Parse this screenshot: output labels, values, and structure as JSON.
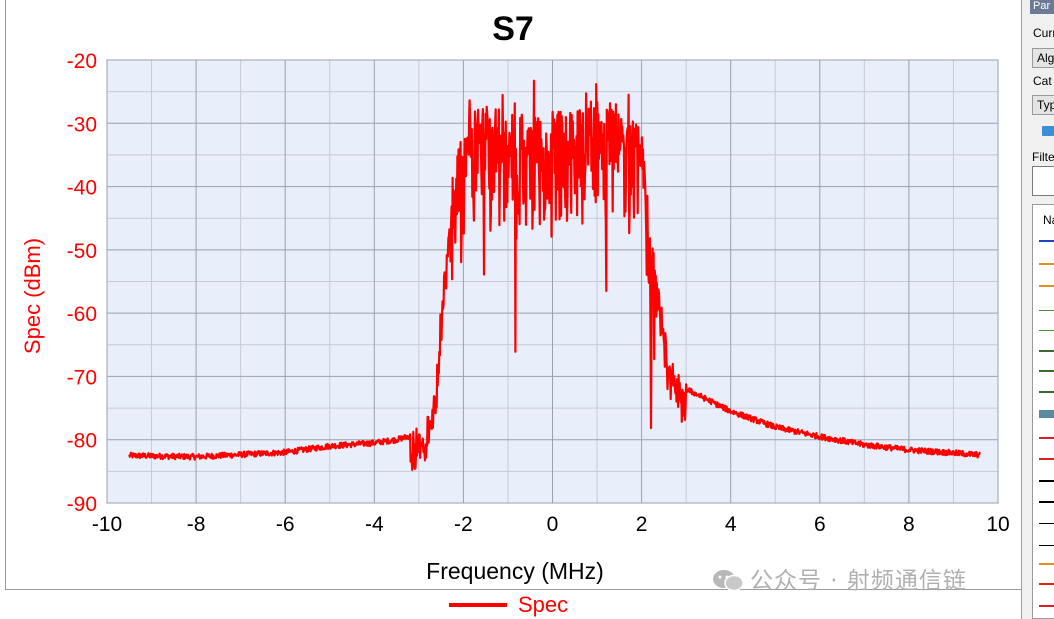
{
  "chart_data": {
    "type": "line",
    "title": "S7",
    "xlabel": "Frequency (MHz)",
    "ylabel": "Spec (dBm)",
    "xlim": [
      -10,
      10
    ],
    "ylim": [
      -90,
      -20
    ],
    "x_ticks": [
      -10,
      -8,
      -6,
      -4,
      -2,
      0,
      2,
      4,
      6,
      8,
      10
    ],
    "y_ticks": [
      -90,
      -80,
      -70,
      -60,
      -50,
      -40,
      -30,
      -20
    ],
    "grid": true,
    "legend_position": "bottom-center",
    "series": [
      {
        "name": "Spec",
        "color": "#ff0000",
        "x": [
          -9.5,
          -8,
          -6,
          -5,
          -4,
          -3.5,
          -3,
          -2.8,
          -2.6,
          -2.5,
          -2.3,
          -2.2,
          -2.0,
          -1.5,
          -1.0,
          -0.5,
          0,
          0.5,
          1.0,
          1.5,
          2.0,
          2.1,
          2.2,
          2.4,
          2.6,
          3.0,
          4.0,
          5.0,
          6.0,
          7.0,
          8.0,
          9.0,
          9.6
        ],
        "y": [
          -82.5,
          -82.7,
          -82,
          -81,
          -80.5,
          -80,
          -79,
          -78,
          -70,
          -60,
          -45,
          -38,
          -32,
          -30,
          -31,
          -32,
          -31,
          -31,
          -29,
          -30,
          -34,
          -40,
          -50,
          -58,
          -67,
          -72,
          -75.5,
          -78,
          -79.5,
          -80.8,
          -81.6,
          -82.1,
          -82.4
        ]
      }
    ]
  },
  "watermark": {
    "text": "公众号 · 射频通信链"
  },
  "right_panel": {
    "tab": "Par",
    "cur_label": "Curr",
    "combo1": "Alg",
    "cat_label": "Cat",
    "combo2": "Typ",
    "filter_label": "Filte",
    "list_header": "Na"
  }
}
